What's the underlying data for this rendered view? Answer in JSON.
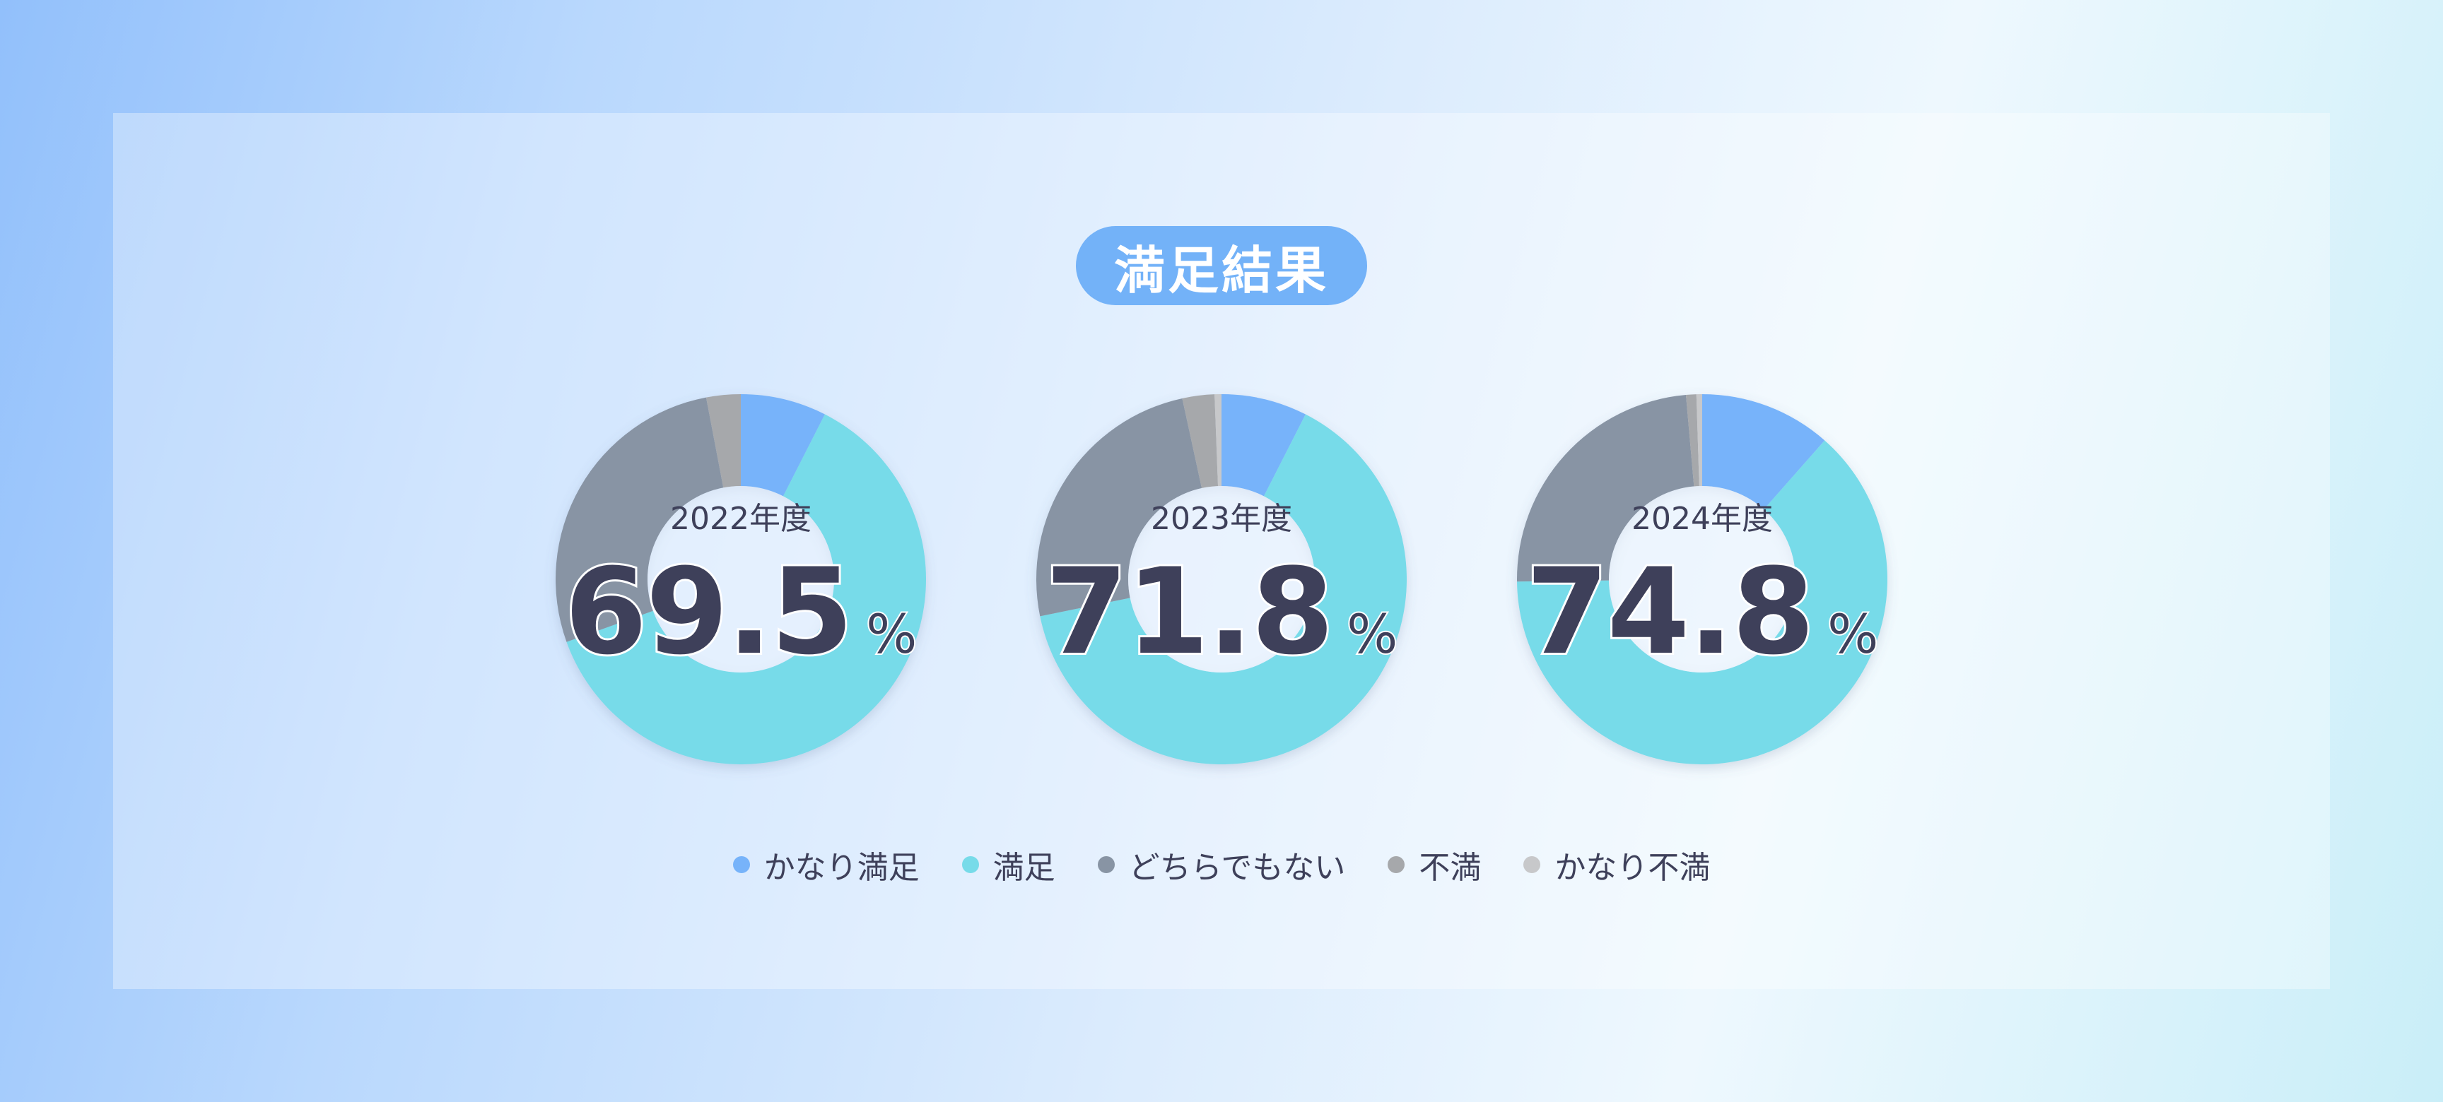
{
  "title": "満足結果",
  "unit": "%",
  "colors": {
    "かなり満足": "#77b3fa",
    "満足": "#77dbe9",
    "どちらでもない": "#8894a4",
    "不満": "#a6a8ab",
    "かなり不満": "#c7c8ca"
  },
  "chart_data": {
    "type": "pie",
    "categories": [
      "かなり満足",
      "満足",
      "どちらでもない",
      "不満",
      "かなり不満"
    ],
    "charts": [
      {
        "label": "2022年度",
        "center_value": "69.5",
        "values": [
          7.5,
          62.0,
          27.5,
          3.0,
          0.0
        ]
      },
      {
        "label": "2023年度",
        "center_value": "71.8",
        "values": [
          7.5,
          64.3,
          24.8,
          2.8,
          0.6
        ]
      },
      {
        "label": "2024年度",
        "center_value": "74.8",
        "values": [
          11.5,
          63.3,
          23.8,
          0.9,
          0.5
        ]
      }
    ]
  }
}
